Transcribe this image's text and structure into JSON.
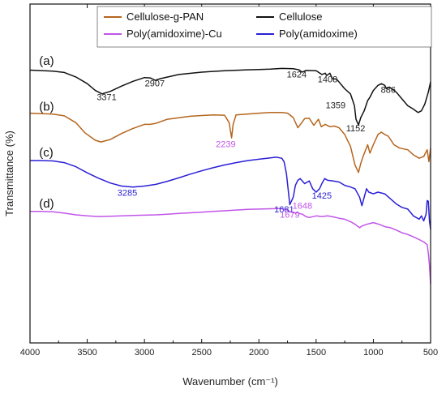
{
  "chart_data": {
    "type": "line",
    "title": "",
    "xlabel": "Wavenumber (cm⁻¹)",
    "ylabel": "Transmittance (%)",
    "xlim": [
      4000,
      500
    ],
    "x_reversed": true,
    "ylim": [
      0,
      100
    ],
    "y_ticks_shown": false,
    "x_ticks": [
      4000,
      3500,
      3000,
      2500,
      2000,
      1500,
      1000,
      500
    ],
    "grid": false,
    "legend_position": "top",
    "legend": [
      {
        "label": "Cellulose-g-PAN",
        "color": "#b5651d"
      },
      {
        "label": "Cellulose",
        "color": "#111111"
      },
      {
        "label": "Poly(amidoxime)-Cu",
        "color": "#c155e8"
      },
      {
        "label": "Poly(amidoxime)",
        "color": "#2a1fd6"
      }
    ],
    "series": [
      {
        "name": "Cellulose",
        "panel": "(a)",
        "color": "#111111",
        "points": [
          [
            4000,
            80.5
          ],
          [
            3800,
            80.2
          ],
          [
            3700,
            79.8
          ],
          [
            3600,
            78.5
          ],
          [
            3500,
            76.5
          ],
          [
            3430,
            74.5
          ],
          [
            3371,
            73.5
          ],
          [
            3300,
            74.2
          ],
          [
            3200,
            75.8
          ],
          [
            3100,
            77.2
          ],
          [
            3000,
            78.3
          ],
          [
            2950,
            78.2
          ],
          [
            2907,
            77.5
          ],
          [
            2860,
            78.0
          ],
          [
            2700,
            79.2
          ],
          [
            2500,
            79.9
          ],
          [
            2300,
            80.3
          ],
          [
            2100,
            80.6
          ],
          [
            2000,
            80.7
          ],
          [
            1900,
            80.8
          ],
          [
            1800,
            81.0
          ],
          [
            1700,
            80.9
          ],
          [
            1650,
            80.6
          ],
          [
            1624,
            79.9
          ],
          [
            1590,
            80.4
          ],
          [
            1500,
            80.3
          ],
          [
            1450,
            79.2
          ],
          [
            1420,
            79.6
          ],
          [
            1408,
            78.9
          ],
          [
            1380,
            79.6
          ],
          [
            1359,
            78.0
          ],
          [
            1320,
            77.8
          ],
          [
            1250,
            75.0
          ],
          [
            1200,
            73.5
          ],
          [
            1165,
            70.0
          ],
          [
            1152,
            66.0
          ],
          [
            1130,
            64.3
          ],
          [
            1110,
            66.5
          ],
          [
            1080,
            68.5
          ],
          [
            1050,
            71.5
          ],
          [
            1030,
            72.5
          ],
          [
            1000,
            74.5
          ],
          [
            960,
            76.0
          ],
          [
            930,
            76.5
          ],
          [
            900,
            76.0
          ],
          [
            886,
            75.0
          ],
          [
            860,
            75.5
          ],
          [
            800,
            74.0
          ],
          [
            750,
            72.0
          ],
          [
            700,
            70.0
          ],
          [
            650,
            69.0
          ],
          [
            610,
            68.0
          ],
          [
            580,
            68.5
          ],
          [
            550,
            70.5
          ],
          [
            520,
            74.0
          ],
          [
            500,
            77.0
          ]
        ]
      },
      {
        "name": "Cellulose-g-PAN",
        "panel": "(b)",
        "color": "#b5651d",
        "points": [
          [
            4000,
            67.8
          ],
          [
            3800,
            67.5
          ],
          [
            3700,
            67.0
          ],
          [
            3600,
            65.0
          ],
          [
            3520,
            62.0
          ],
          [
            3430,
            59.8
          ],
          [
            3380,
            59.3
          ],
          [
            3300,
            60.0
          ],
          [
            3200,
            61.8
          ],
          [
            3100,
            63.3
          ],
          [
            3000,
            64.5
          ],
          [
            2950,
            64.5
          ],
          [
            2900,
            64.8
          ],
          [
            2800,
            66.0
          ],
          [
            2600,
            66.9
          ],
          [
            2400,
            67.3
          ],
          [
            2300,
            67.2
          ],
          [
            2260,
            65.0
          ],
          [
            2239,
            60.5
          ],
          [
            2225,
            64.5
          ],
          [
            2200,
            67.3
          ],
          [
            2000,
            67.8
          ],
          [
            1900,
            68.0
          ],
          [
            1800,
            68.0
          ],
          [
            1750,
            67.8
          ],
          [
            1700,
            66.5
          ],
          [
            1660,
            63.5
          ],
          [
            1630,
            64.8
          ],
          [
            1600,
            66.2
          ],
          [
            1560,
            66.3
          ],
          [
            1520,
            64.2
          ],
          [
            1480,
            66.0
          ],
          [
            1455,
            63.8
          ],
          [
            1420,
            64.5
          ],
          [
            1380,
            63.8
          ],
          [
            1340,
            64.0
          ],
          [
            1300,
            63.5
          ],
          [
            1250,
            61.5
          ],
          [
            1200,
            58.0
          ],
          [
            1160,
            52.5
          ],
          [
            1130,
            50.3
          ],
          [
            1110,
            53.0
          ],
          [
            1090,
            55.0
          ],
          [
            1050,
            58.5
          ],
          [
            1030,
            56.0
          ],
          [
            1000,
            58.5
          ],
          [
            960,
            61.5
          ],
          [
            930,
            62.2
          ],
          [
            900,
            61.5
          ],
          [
            870,
            61.0
          ],
          [
            820,
            58.5
          ],
          [
            770,
            57.5
          ],
          [
            700,
            57.0
          ],
          [
            650,
            55.5
          ],
          [
            600,
            54.5
          ],
          [
            560,
            55.0
          ],
          [
            530,
            57.0
          ],
          [
            515,
            53.5
          ],
          [
            500,
            57.5
          ]
        ]
      },
      {
        "name": "Poly(amidoxime)",
        "panel": "(c)",
        "color": "#2a1fd6",
        "points": [
          [
            4000,
            53.8
          ],
          [
            3900,
            53.8
          ],
          [
            3800,
            53.7
          ],
          [
            3700,
            53.2
          ],
          [
            3600,
            52.0
          ],
          [
            3500,
            50.2
          ],
          [
            3400,
            48.6
          ],
          [
            3300,
            47.2
          ],
          [
            3200,
            46.3
          ],
          [
            3100,
            46.0
          ],
          [
            3000,
            46.3
          ],
          [
            2900,
            46.8
          ],
          [
            2800,
            47.7
          ],
          [
            2700,
            48.7
          ],
          [
            2600,
            49.8
          ],
          [
            2500,
            50.8
          ],
          [
            2400,
            51.7
          ],
          [
            2300,
            52.5
          ],
          [
            2200,
            53.2
          ],
          [
            2100,
            53.8
          ],
          [
            2000,
            54.2
          ],
          [
            1900,
            54.6
          ],
          [
            1850,
            54.8
          ],
          [
            1800,
            54.5
          ],
          [
            1780,
            53.5
          ],
          [
            1760,
            50.0
          ],
          [
            1730,
            40.8
          ],
          [
            1700,
            43.0
          ],
          [
            1681,
            46.5
          ],
          [
            1660,
            48.0
          ],
          [
            1640,
            48.5
          ],
          [
            1600,
            47.0
          ],
          [
            1560,
            47.8
          ],
          [
            1530,
            45.5
          ],
          [
            1500,
            44.5
          ],
          [
            1470,
            45.5
          ],
          [
            1450,
            47.0
          ],
          [
            1425,
            48.5
          ],
          [
            1400,
            48.0
          ],
          [
            1350,
            47.8
          ],
          [
            1300,
            47.5
          ],
          [
            1250,
            46.5
          ],
          [
            1200,
            46.0
          ],
          [
            1160,
            45.5
          ],
          [
            1120,
            43.0
          ],
          [
            1100,
            40.5
          ],
          [
            1080,
            43.0
          ],
          [
            1060,
            45.5
          ],
          [
            1040,
            44.5
          ],
          [
            1000,
            44.0
          ],
          [
            960,
            44.5
          ],
          [
            900,
            44.0
          ],
          [
            850,
            42.5
          ],
          [
            800,
            41.0
          ],
          [
            750,
            40.0
          ],
          [
            700,
            39.5
          ],
          [
            650,
            37.5
          ],
          [
            600,
            36.5
          ],
          [
            580,
            37.5
          ],
          [
            560,
            36.0
          ],
          [
            540,
            38.0
          ],
          [
            530,
            42.0
          ],
          [
            520,
            41.8
          ],
          [
            510,
            36.0
          ],
          [
            500,
            33.5
          ]
        ]
      },
      {
        "name": "Poly(amidoxime)-Cu",
        "panel": "(d)",
        "color": "#c155e8",
        "points": [
          [
            4000,
            38.8
          ],
          [
            3900,
            38.8
          ],
          [
            3800,
            38.7
          ],
          [
            3700,
            38.3
          ],
          [
            3600,
            37.8
          ],
          [
            3500,
            37.5
          ],
          [
            3400,
            37.3
          ],
          [
            3300,
            37.4
          ],
          [
            3200,
            37.5
          ],
          [
            3100,
            37.6
          ],
          [
            3000,
            37.7
          ],
          [
            2900,
            37.8
          ],
          [
            2800,
            38.0
          ],
          [
            2700,
            38.2
          ],
          [
            2600,
            38.4
          ],
          [
            2500,
            38.6
          ],
          [
            2400,
            38.8
          ],
          [
            2300,
            39.0
          ],
          [
            2200,
            39.2
          ],
          [
            2100,
            39.4
          ],
          [
            2000,
            39.5
          ],
          [
            1900,
            39.6
          ],
          [
            1800,
            39.7
          ],
          [
            1760,
            39.3
          ],
          [
            1720,
            38.6
          ],
          [
            1679,
            38.3
          ],
          [
            1660,
            38.5
          ],
          [
            1648,
            38.2
          ],
          [
            1620,
            38.0
          ],
          [
            1590,
            37.3
          ],
          [
            1560,
            37.0
          ],
          [
            1500,
            37.5
          ],
          [
            1450,
            37.3
          ],
          [
            1400,
            37.5
          ],
          [
            1350,
            37.2
          ],
          [
            1300,
            36.8
          ],
          [
            1250,
            36.5
          ],
          [
            1200,
            35.8
          ],
          [
            1160,
            35.0
          ],
          [
            1120,
            34.0
          ],
          [
            1100,
            34.5
          ],
          [
            1060,
            35.0
          ],
          [
            1000,
            35.5
          ],
          [
            950,
            35.0
          ],
          [
            900,
            34.3
          ],
          [
            850,
            34.0
          ],
          [
            800,
            33.3
          ],
          [
            750,
            32.5
          ],
          [
            700,
            32.0
          ],
          [
            650,
            31.3
          ],
          [
            600,
            30.5
          ],
          [
            560,
            29.8
          ],
          [
            530,
            29.0
          ],
          [
            520,
            26.5
          ],
          [
            510,
            23.0
          ],
          [
            500,
            17.5
          ]
        ]
      }
    ],
    "panel_labels": [
      {
        "text": "(a)",
        "x": 3920,
        "y": 82
      },
      {
        "text": "(b)",
        "x": 3920,
        "y": 68.5
      },
      {
        "text": "(c)",
        "x": 3920,
        "y": 55
      },
      {
        "text": "(d)",
        "x": 3920,
        "y": 40
      }
    ],
    "annotations": [
      {
        "text": "3371",
        "x": 3330,
        "y": 71.6,
        "color": "#222222"
      },
      {
        "text": "2907",
        "x": 2910,
        "y": 75.7,
        "color": "#222222"
      },
      {
        "text": "1624",
        "x": 1670,
        "y": 78.4,
        "color": "#222222"
      },
      {
        "text": "1408",
        "x": 1400,
        "y": 76.9,
        "color": "#222222"
      },
      {
        "text": "1359",
        "x": 1330,
        "y": 69.2,
        "color": "#222222"
      },
      {
        "text": "886",
        "x": 870,
        "y": 73.8,
        "color": "#222222"
      },
      {
        "text": "1152",
        "x": 1155,
        "y": 62.5,
        "color": "#222222"
      },
      {
        "text": "2239",
        "x": 2290,
        "y": 57.8,
        "color": "#c155e8"
      },
      {
        "text": "3285",
        "x": 3150,
        "y": 43.4,
        "color": "#2a1fd6"
      },
      {
        "text": "1681",
        "x": 1780,
        "y": 38.5,
        "color": "#2a1fd6"
      },
      {
        "text": "1425",
        "x": 1450,
        "y": 42.6,
        "color": "#2a1fd6"
      },
      {
        "text": "1648",
        "x": 1620,
        "y": 39.6,
        "color": "#c155e8"
      },
      {
        "text": "1679",
        "x": 1730,
        "y": 37.0,
        "color": "#c155e8"
      }
    ]
  }
}
